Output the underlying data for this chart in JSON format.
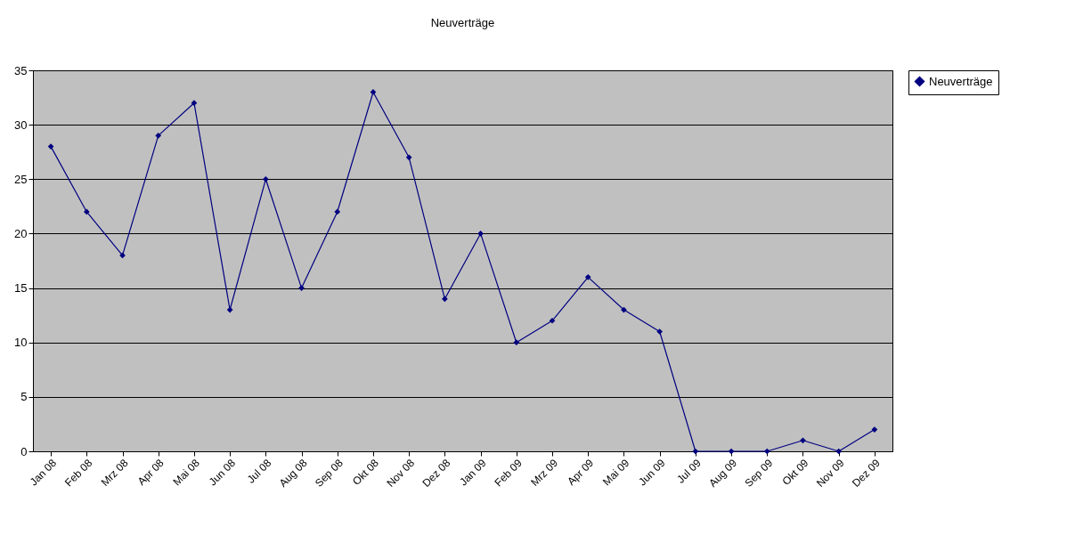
{
  "chart_data": {
    "type": "line",
    "title": "Neuverträge",
    "categories": [
      "Jan 08",
      "Feb 08",
      "Mrz 08",
      "Apr 08",
      "Mai 08",
      "Jun 08",
      "Jul 08",
      "Aug 08",
      "Sep 08",
      "Okt 08",
      "Nov 08",
      "Dez 08",
      "Jan 09",
      "Feb 09",
      "Mrz 09",
      "Apr 09",
      "Mai 09",
      "Jun 09",
      "Jul 09",
      "Aug 09",
      "Sep 09",
      "Okt 09",
      "Nov 09",
      "Dez 09"
    ],
    "series": [
      {
        "name": "Neuverträge",
        "color": "#000080",
        "values": [
          28,
          22,
          18,
          29,
          32,
          13,
          25,
          15,
          22,
          33,
          27,
          14,
          20,
          10,
          12,
          16,
          13,
          11,
          0,
          0,
          0,
          1,
          0,
          2
        ]
      }
    ],
    "ylim": [
      0,
      35
    ],
    "yticks": [
      0,
      5,
      10,
      15,
      20,
      25,
      30,
      35
    ],
    "grid": "y",
    "legend": "right",
    "marker": "diamond",
    "line_style": "solid"
  }
}
